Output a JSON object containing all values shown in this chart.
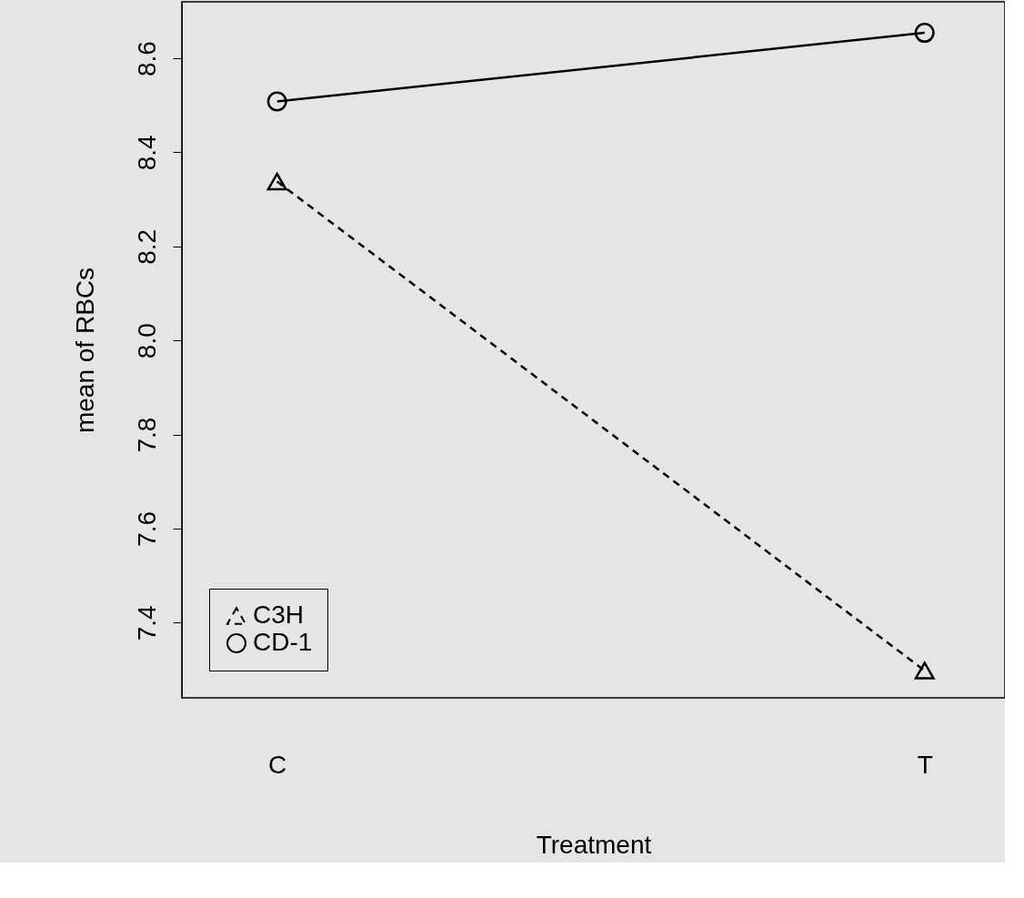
{
  "chart_data": {
    "type": "line",
    "xlabel": "Treatment",
    "ylabel": "mean of  RBCs",
    "categories": [
      "C",
      "T"
    ],
    "series": [
      {
        "name": "C3H",
        "color": "#000000",
        "values": [
          8.338,
          7.298
        ],
        "marker": "triangle",
        "line_style": "dashed"
      },
      {
        "name": "CD-1",
        "color": "#000000",
        "values": [
          8.508,
          8.654
        ],
        "marker": "circle",
        "line_style": "solid"
      }
    ],
    "ylim": [
      7.24,
      8.72
    ],
    "yticks": [
      7.4,
      7.6,
      7.8,
      {
        "value": 8.0,
        "label": "8.0"
      },
      8.2,
      8.4,
      8.6
    ],
    "grid": false,
    "legend": "bottom left"
  }
}
